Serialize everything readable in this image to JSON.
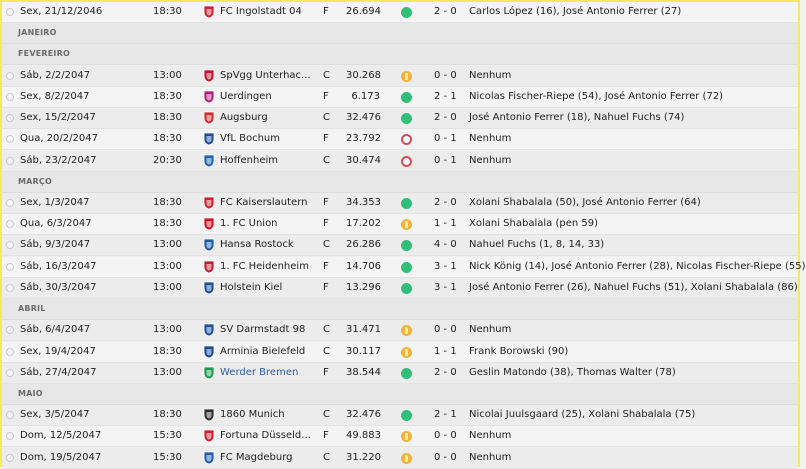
{
  "colors": {
    "frame": "#f5ec52",
    "win": "#2fbf78",
    "draw": "#f0b43a",
    "loss": "#d84a56",
    "link": "#2d5fa8"
  },
  "rows": [
    {
      "type": "match",
      "date": "Sex, 21/12/2046",
      "time": "18:30",
      "team": "FC Ingolstadt 04",
      "crest": "ingolstadt-crest-icon",
      "crest_color": "#d0222f",
      "venue": "F",
      "attendance": "26.694",
      "result": "win",
      "score": "2 - 0",
      "scorers": "Carlos López (16), José Antonio Ferrer (27)"
    },
    {
      "type": "month",
      "label": "JANEIRO"
    },
    {
      "type": "month",
      "label": "FEVEREIRO"
    },
    {
      "type": "match",
      "date": "Sáb, 2/2/2047",
      "time": "13:00",
      "team": "SpVgg Unterhac...",
      "crest": "unterhaching-crest-icon",
      "crest_color": "#c8102e",
      "venue": "C",
      "attendance": "30.268",
      "result": "draw",
      "score": "0 - 0",
      "scorers": "Nenhum"
    },
    {
      "type": "match",
      "date": "Sex, 8/2/2047",
      "time": "18:30",
      "team": "Uerdingen",
      "crest": "uerdingen-crest-icon",
      "crest_color": "#b21e7d",
      "venue": "F",
      "attendance": "6.173",
      "result": "win",
      "score": "2 - 1",
      "scorers": "Nicolas Fischer-Riepe (54), José Antonio Ferrer (72)"
    },
    {
      "type": "match",
      "date": "Sex, 15/2/2047",
      "time": "18:30",
      "team": "Augsburg",
      "crest": "augsburg-crest-icon",
      "crest_color": "#cf2e2e",
      "venue": "C",
      "attendance": "32.476",
      "result": "win",
      "score": "2 - 0",
      "scorers": "José Antonio Ferrer (18), Nahuel Fuchs (74)"
    },
    {
      "type": "match",
      "date": "Qua, 20/2/2047",
      "time": "18:30",
      "team": "VfL Bochum",
      "crest": "bochum-crest-icon",
      "crest_color": "#1d4f9c",
      "venue": "F",
      "attendance": "23.792",
      "result": "loss",
      "score": "0 - 1",
      "scorers": "Nenhum"
    },
    {
      "type": "match",
      "date": "Sáb, 23/2/2047",
      "time": "20:30",
      "team": "Hoffenheim",
      "crest": "hoffenheim-crest-icon",
      "crest_color": "#1b62b0",
      "venue": "C",
      "attendance": "30.474",
      "result": "loss",
      "score": "0 - 1",
      "scorers": "Nenhum"
    },
    {
      "type": "month",
      "label": "MARÇO"
    },
    {
      "type": "match",
      "date": "Sex, 1/3/2047",
      "time": "18:30",
      "team": "FC Kaiserslautern",
      "crest": "kaiserslautern-crest-icon",
      "crest_color": "#d32030",
      "venue": "F",
      "attendance": "34.353",
      "result": "win",
      "score": "2 - 0",
      "scorers": "Xolani Shabalala (50), José Antonio Ferrer (64)"
    },
    {
      "type": "match",
      "date": "Qua, 6/3/2047",
      "time": "18:30",
      "team": "1. FC Union",
      "crest": "union-crest-icon",
      "crest_color": "#d6101f",
      "venue": "F",
      "attendance": "17.202",
      "result": "draw",
      "score": "1 - 1",
      "scorers": "Xolani Shabalala (pen 59)"
    },
    {
      "type": "match",
      "date": "Sáb, 9/3/2047",
      "time": "13:00",
      "team": "Hansa Rostock",
      "crest": "rostock-crest-icon",
      "crest_color": "#1c5aa6",
      "venue": "C",
      "attendance": "26.286",
      "result": "win",
      "score": "4 - 0",
      "scorers": "Nahuel Fuchs (1, 8, 14, 33)"
    },
    {
      "type": "match",
      "date": "Sáb, 16/3/2047",
      "time": "13:00",
      "team": "1. FC Heidenheim",
      "crest": "heidenheim-crest-icon",
      "crest_color": "#c41f2f",
      "venue": "F",
      "attendance": "14.706",
      "result": "win",
      "score": "3 - 1",
      "scorers": "Nick König (14), José Antonio Ferrer (28), Nicolas Fischer-Riepe (55)"
    },
    {
      "type": "match",
      "date": "Sáb, 30/3/2047",
      "time": "13:00",
      "team": "Holstein Kiel",
      "crest": "kiel-crest-icon",
      "crest_color": "#1a4f96",
      "venue": "F",
      "attendance": "13.296",
      "result": "win",
      "score": "3 - 1",
      "scorers": "José Antonio Ferrer (26), Nahuel Fuchs (51), Xolani Shabalala (86)"
    },
    {
      "type": "month",
      "label": "ABRIL"
    },
    {
      "type": "match",
      "date": "Sáb, 6/4/2047",
      "time": "13:00",
      "team": "SV Darmstadt 98",
      "crest": "darmstadt-crest-icon",
      "crest_color": "#1e4f9e",
      "venue": "C",
      "attendance": "31.471",
      "result": "draw",
      "score": "0 - 0",
      "scorers": "Nenhum"
    },
    {
      "type": "match",
      "date": "Sex, 19/4/2047",
      "time": "18:30",
      "team": "Arminia Bielefeld",
      "crest": "bielefeld-crest-icon",
      "crest_color": "#184a94",
      "venue": "C",
      "attendance": "30.117",
      "result": "draw",
      "score": "1 - 1",
      "scorers": "Frank Borowski (90)"
    },
    {
      "type": "match",
      "date": "Sáb, 27/4/2047",
      "time": "13:00",
      "team": "Werder Bremen",
      "crest": "werder-crest-icon",
      "crest_color": "#1d9a4e",
      "venue": "F",
      "attendance": "38.544",
      "result": "win",
      "score": "2 - 0",
      "scorers": "Geslin Matondo (38), Thomas Walter (78)",
      "link": true
    },
    {
      "type": "month",
      "label": "MAIO"
    },
    {
      "type": "match",
      "date": "Sex, 3/5/2047",
      "time": "18:30",
      "team": "1860 Munich",
      "crest": "munich-1860-crest-icon",
      "crest_color": "#2e2e2e",
      "venue": "C",
      "attendance": "32.476",
      "result": "win",
      "score": "2 - 1",
      "scorers": "Nicolai Juulsgaard (25), Xolani Shabalala (75)"
    },
    {
      "type": "match",
      "date": "Dom, 12/5/2047",
      "time": "15:30",
      "team": "Fortuna Düsseld...",
      "crest": "fortuna-crest-icon",
      "crest_color": "#d41f2b",
      "venue": "F",
      "attendance": "49.883",
      "result": "draw",
      "score": "0 - 0",
      "scorers": "Nenhum"
    },
    {
      "type": "match",
      "date": "Dom, 19/5/2047",
      "time": "15:30",
      "team": "FC Magdeburg",
      "crest": "magdeburg-crest-icon",
      "crest_color": "#1e5cb3",
      "venue": "C",
      "attendance": "31.220",
      "result": "draw",
      "score": "0 - 0",
      "scorers": "Nenhum"
    }
  ]
}
